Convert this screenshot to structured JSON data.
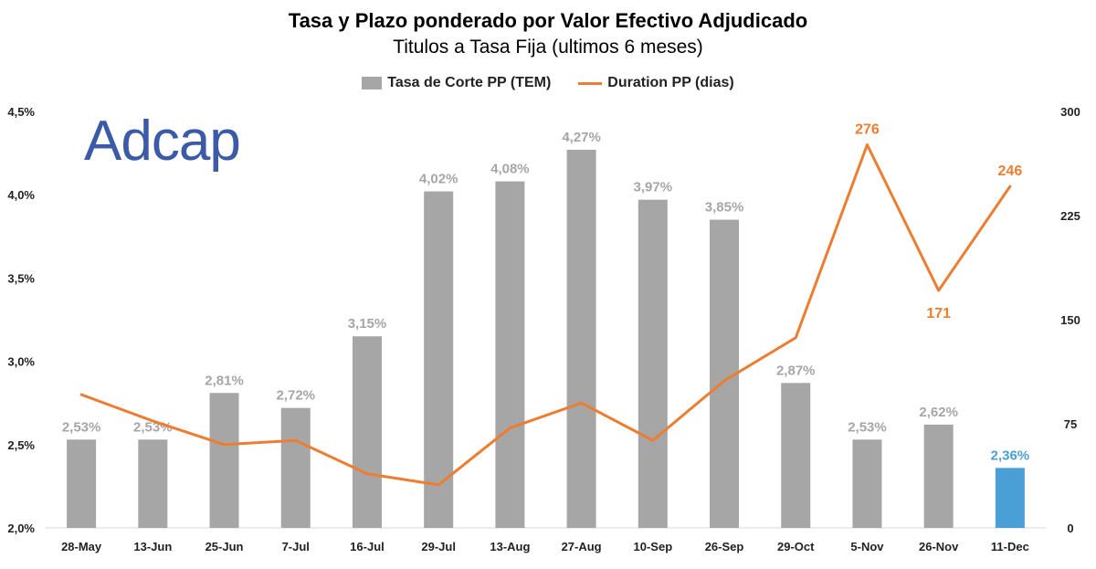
{
  "chart_data": {
    "type": "bar",
    "title": "Tasa y Plazo ponderado por Valor Efectivo Adjudicado",
    "subtitle": "Titulos a Tasa Fija (ultimos 6 meses)",
    "categories": [
      "28-May",
      "13-Jun",
      "25-Jun",
      "7-Jul",
      "16-Jul",
      "29-Jul",
      "13-Aug",
      "27-Aug",
      "10-Sep",
      "26-Sep",
      "29-Oct",
      "5-Nov",
      "26-Nov",
      "11-Dec"
    ],
    "series": [
      {
        "name": "Tasa de Corte PP (TEM)",
        "type": "bar",
        "axis": "left",
        "values": [
          2.53,
          2.53,
          2.81,
          2.72,
          3.15,
          4.02,
          4.08,
          4.27,
          3.97,
          3.85,
          2.87,
          2.53,
          2.62,
          2.36
        ],
        "labels": [
          "2,53%",
          "2,53%",
          "2,81%",
          "2,72%",
          "3,15%",
          "4,02%",
          "4,08%",
          "4,27%",
          "3,97%",
          "3,85%",
          "2,87%",
          "2,53%",
          "2,62%",
          "2,36%"
        ],
        "color": "#a6a6a6",
        "highlight_color": "#4a9fd6",
        "highlight_index": 13
      },
      {
        "name": "Duration PP (dias)",
        "type": "line",
        "axis": "right",
        "values": [
          96,
          77,
          60,
          63,
          39,
          31,
          72,
          90,
          63,
          106,
          137,
          276,
          171,
          246
        ],
        "labels": [
          "",
          "",
          "",
          "",
          "",
          "",
          "",
          "",
          "",
          "",
          "",
          "276",
          "171",
          "246"
        ],
        "color": "#ed7d31"
      }
    ],
    "y_left": {
      "range": [
        2.0,
        4.5
      ],
      "ticks": [
        2.0,
        2.5,
        3.0,
        3.5,
        4.0,
        4.5
      ],
      "tick_labels": [
        "2,0%",
        "2,5%",
        "3,0%",
        "3,5%",
        "4,0%",
        "4,5%"
      ]
    },
    "y_right": {
      "range": [
        0,
        300
      ],
      "ticks": [
        0,
        75,
        150,
        225,
        300
      ],
      "tick_labels": [
        "0",
        "75",
        "150",
        "225",
        "300"
      ]
    },
    "legend_position": "top-center",
    "grid": false
  },
  "logo": {
    "text": "Adcap",
    "color_primary": "#3b5aa8",
    "color_secondary": "#1f3566"
  }
}
